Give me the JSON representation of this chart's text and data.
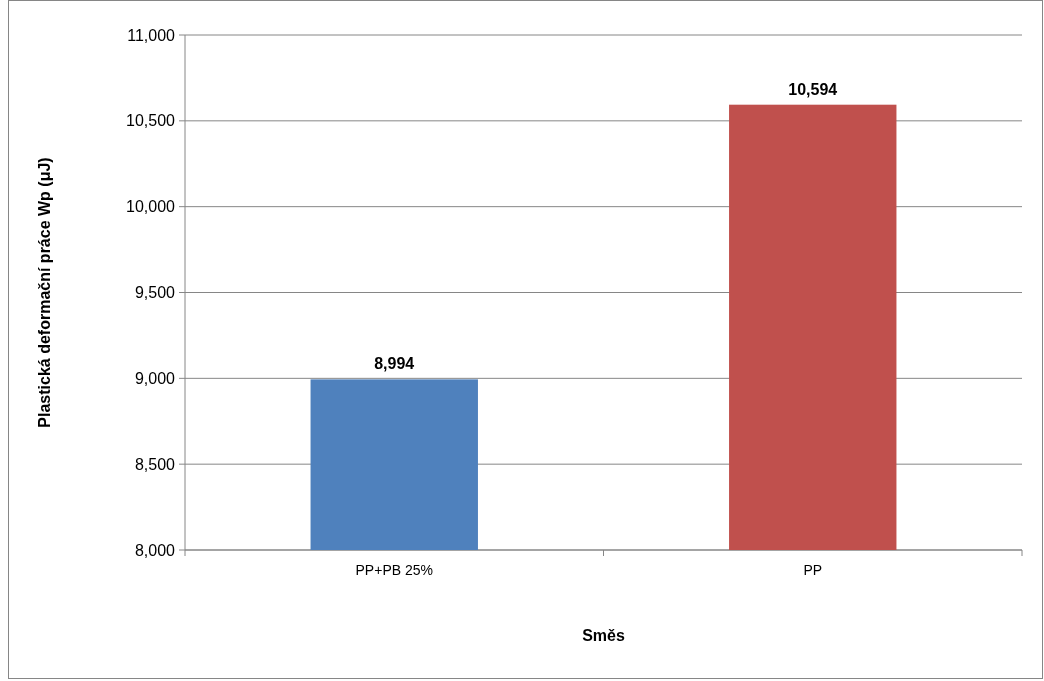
{
  "chart_data": {
    "type": "bar",
    "xlabel": "Směs",
    "ylabel": "Plastická deformační práce Wp (μJ)",
    "categories": [
      "PP+PB 25%",
      "PP"
    ],
    "values": [
      8994,
      10594
    ],
    "value_labels": [
      "8,994",
      "10,594"
    ],
    "colors": [
      "#4f81bd",
      "#c0504d"
    ],
    "ylim": [
      8000,
      11000
    ],
    "yticks": [
      {
        "value": 8000,
        "label": "8,000"
      },
      {
        "value": 8500,
        "label": "8,500"
      },
      {
        "value": 9000,
        "label": "9,000"
      },
      {
        "value": 9500,
        "label": "9,500"
      },
      {
        "value": 10000,
        "label": "10,000"
      },
      {
        "value": 10500,
        "label": "10,500"
      },
      {
        "value": 11000,
        "label": "11,000"
      }
    ],
    "grid": "y"
  }
}
